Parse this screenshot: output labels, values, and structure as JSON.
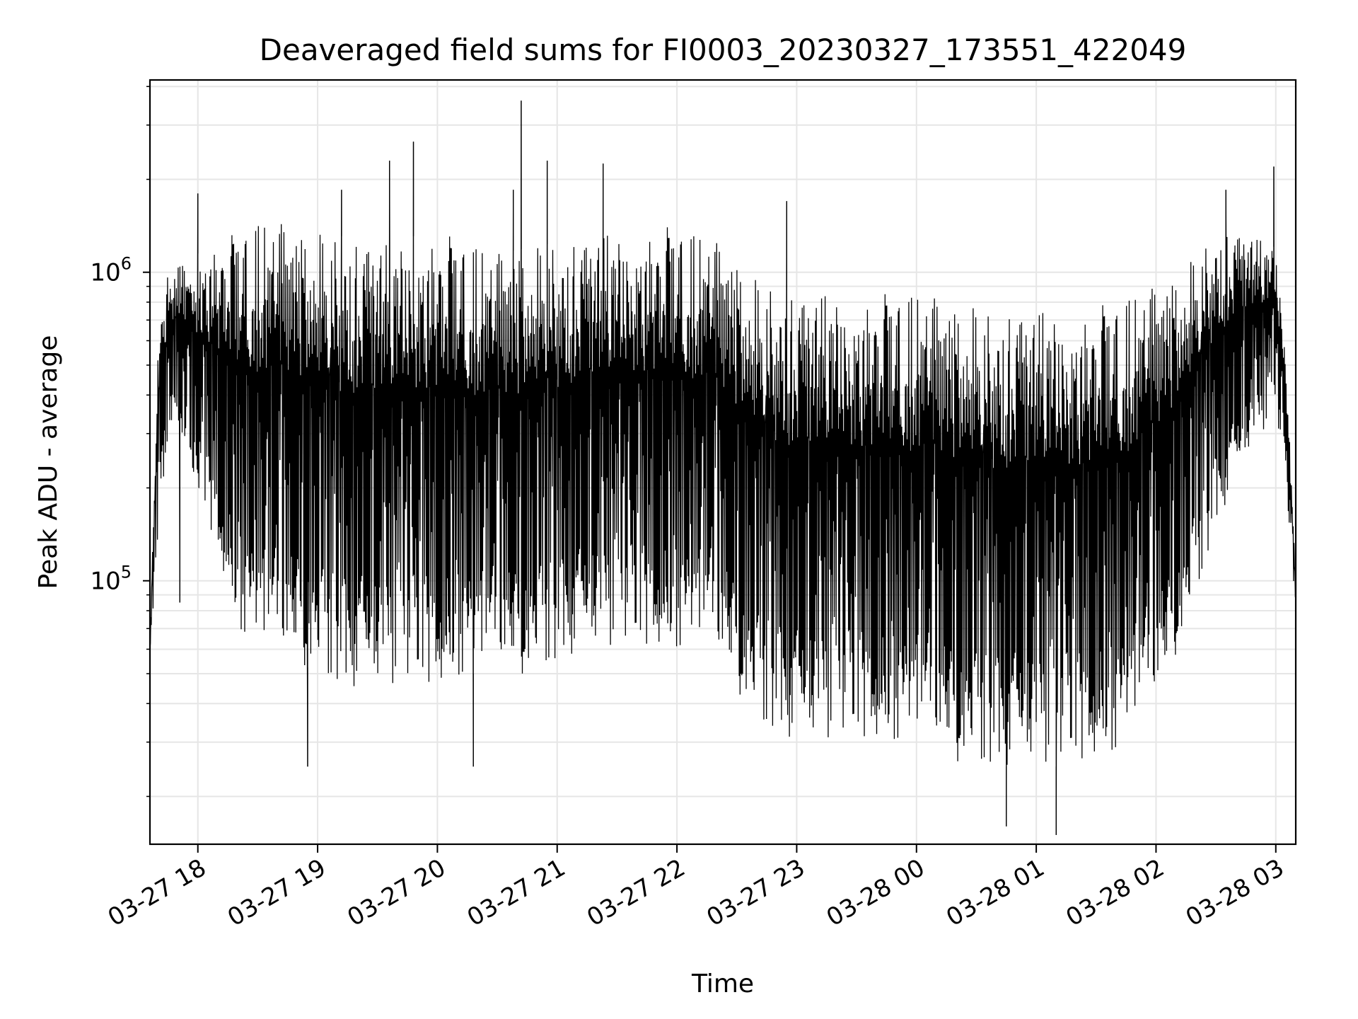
{
  "chart_data": {
    "type": "line",
    "title": "Deaveraged field sums for FI0003_20230327_173551_422049",
    "xlabel": "Time",
    "ylabel": "Peak ADU - average",
    "y_scale": "log",
    "grid": true,
    "line_color": "#000000",
    "grid_color": "#e6e6e6",
    "x_range": [
      "2023-03-27 17:36",
      "2023-03-28 03:10"
    ],
    "ylim": [
      14000,
      4200000
    ],
    "x_ticks": [
      {
        "value": "2023-03-27 18:00",
        "label": "03-27 18"
      },
      {
        "value": "2023-03-27 19:00",
        "label": "03-27 19"
      },
      {
        "value": "2023-03-27 20:00",
        "label": "03-27 20"
      },
      {
        "value": "2023-03-27 21:00",
        "label": "03-27 21"
      },
      {
        "value": "2023-03-27 22:00",
        "label": "03-27 22"
      },
      {
        "value": "2023-03-27 23:00",
        "label": "03-27 23"
      },
      {
        "value": "2023-03-28 00:00",
        "label": "03-28 00"
      },
      {
        "value": "2023-03-28 01:00",
        "label": "03-28 01"
      },
      {
        "value": "2023-03-28 02:00",
        "label": "03-28 02"
      },
      {
        "value": "2023-03-28 03:00",
        "label": "03-28 03"
      }
    ],
    "y_ticks": [
      {
        "value": 100000,
        "base": "10",
        "exp": "5"
      },
      {
        "value": 1000000,
        "base": "10",
        "exp": "6"
      }
    ],
    "series": [
      {
        "x": [
          "2023-03-27 17:36",
          "2023-03-27 17:40",
          "2023-03-27 17:45",
          "2023-03-27 17:50",
          "2023-03-27 17:55",
          "2023-03-27 18:00",
          "2023-03-27 18:10",
          "2023-03-27 18:20",
          "2023-03-27 18:30",
          "2023-03-27 18:40",
          "2023-03-27 18:50",
          "2023-03-27 19:00",
          "2023-03-27 19:15",
          "2023-03-27 19:30",
          "2023-03-27 19:45",
          "2023-03-27 20:00",
          "2023-03-27 20:15",
          "2023-03-27 20:30",
          "2023-03-27 20:45",
          "2023-03-27 21:00",
          "2023-03-27 21:15",
          "2023-03-27 21:30",
          "2023-03-27 21:45",
          "2023-03-27 22:00",
          "2023-03-27 22:15",
          "2023-03-27 22:25",
          "2023-03-27 22:40",
          "2023-03-27 23:00",
          "2023-03-27 23:20",
          "2023-03-27 23:40",
          "2023-03-28 00:00",
          "2023-03-28 00:20",
          "2023-03-28 00:40",
          "2023-03-28 01:00",
          "2023-03-28 01:20",
          "2023-03-28 01:40",
          "2023-03-28 02:00",
          "2023-03-28 02:15",
          "2023-03-28 02:30",
          "2023-03-28 02:45",
          "2023-03-28 03:00",
          "2023-03-28 03:05",
          "2023-03-28 03:10"
        ],
        "upper": [
          60000,
          700000,
          1000000,
          1100000,
          1100000,
          1150000,
          1250000,
          1350000,
          1450000,
          1450000,
          1400000,
          1350000,
          1300000,
          1250000,
          1300000,
          1350000,
          1250000,
          1150000,
          1200000,
          1250000,
          1300000,
          1350000,
          1400000,
          1400000,
          1300000,
          1200000,
          950000,
          850000,
          850000,
          850000,
          850000,
          800000,
          750000,
          750000,
          750000,
          800000,
          900000,
          1050000,
          1350000,
          1350000,
          1200000,
          600000,
          100000
        ],
        "lower": [
          60000,
          130000,
          300000,
          300000,
          250000,
          200000,
          120000,
          70000,
          60000,
          55000,
          55000,
          50000,
          45000,
          45000,
          45000,
          45000,
          50000,
          50000,
          50000,
          55000,
          60000,
          60000,
          60000,
          60000,
          60000,
          50000,
          35000,
          30000,
          30000,
          30000,
          30000,
          26000,
          25000,
          25000,
          25000,
          28000,
          40000,
          70000,
          150000,
          250000,
          350000,
          200000,
          80000
        ],
        "spikes": [
          {
            "x": "2023-03-27 18:00",
            "y": 1800000
          },
          {
            "x": "2023-03-27 19:12",
            "y": 1850000
          },
          {
            "x": "2023-03-27 19:36",
            "y": 2300000
          },
          {
            "x": "2023-03-27 19:48",
            "y": 2650000
          },
          {
            "x": "2023-03-27 20:38",
            "y": 1850000
          },
          {
            "x": "2023-03-27 20:42",
            "y": 3600000
          },
          {
            "x": "2023-03-27 20:55",
            "y": 2300000
          },
          {
            "x": "2023-03-27 21:23",
            "y": 2250000
          },
          {
            "x": "2023-03-27 22:55",
            "y": 1700000
          },
          {
            "x": "2023-03-28 02:35",
            "y": 1850000
          },
          {
            "x": "2023-03-28 02:59",
            "y": 2200000
          },
          {
            "x": "2023-03-27 17:51",
            "y": 85000
          },
          {
            "x": "2023-03-27 18:55",
            "y": 25000
          },
          {
            "x": "2023-03-27 20:18",
            "y": 25000
          },
          {
            "x": "2023-03-28 00:45",
            "y": 16000
          },
          {
            "x": "2023-03-28 01:10",
            "y": 15000
          }
        ]
      }
    ]
  }
}
